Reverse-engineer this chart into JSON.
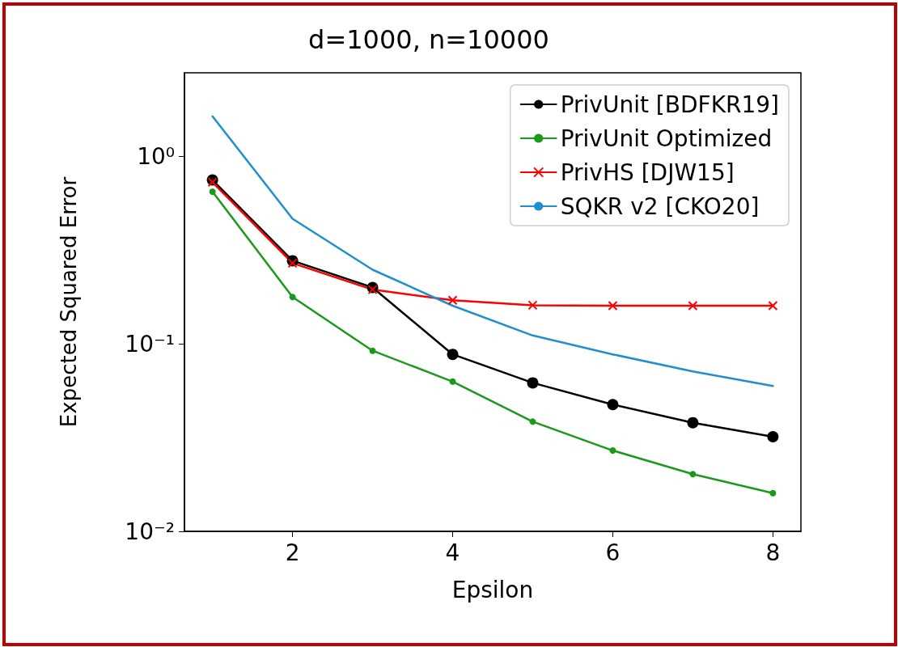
{
  "chart_data": {
    "type": "line",
    "title": "d=1000, n=10000",
    "xlabel": "Epsilon",
    "ylabel": "Expected Squared Error",
    "x": [
      1,
      2,
      3,
      4,
      5,
      6,
      7,
      8
    ],
    "series": [
      {
        "name": "PrivUnit [BDFKR19]",
        "color": "#000000",
        "marker": "circle",
        "values": [
          0.75,
          0.278,
          0.2,
          0.088,
          0.062,
          0.0475,
          0.038,
          0.032
        ]
      },
      {
        "name": "PrivUnit Optimized",
        "color": "#1a9a1a",
        "marker": "circle",
        "values": [
          0.65,
          0.178,
          0.092,
          0.063,
          0.0385,
          0.027,
          0.0202,
          0.016
        ]
      },
      {
        "name": "PrivHS [DJW15]",
        "color": "#ff0000",
        "marker": "cross",
        "values": [
          0.73,
          0.27,
          0.195,
          0.171,
          0.161,
          0.16,
          0.16,
          0.16
        ]
      },
      {
        "name": "SQKR v2 [CKO20]",
        "color": "#1f8fd0",
        "marker": "none",
        "values": [
          1.64,
          0.466,
          0.249,
          0.16,
          0.111,
          0.088,
          0.0713,
          0.0597
        ]
      }
    ],
    "log": "y",
    "xlim": [
      0.65,
      8.35
    ],
    "ylim": [
      0.01,
      2.8
    ],
    "xticks": [
      2,
      4,
      6,
      8
    ],
    "yticks": [
      {
        "value": 0.01,
        "label": "10⁻²"
      },
      {
        "value": 0.1,
        "label": "10⁻¹"
      },
      {
        "value": 1,
        "label": "10⁰"
      }
    ],
    "grid": false,
    "legend": "top right",
    "line_style": "solid"
  }
}
